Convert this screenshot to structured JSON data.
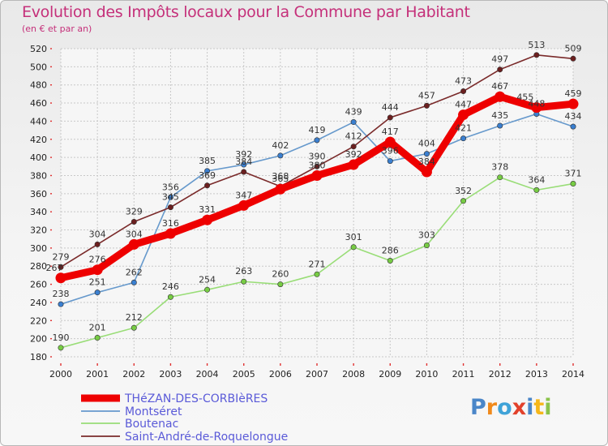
{
  "title": "Evolution des Impôts locaux pour la Commune par Habitant",
  "subtitle": "(en € et par an)",
  "logo_text": "Proxiti",
  "colors": {
    "title": "#c5307a",
    "legend_text": "#5a5ad8",
    "grid": "#c8c8c8",
    "axis_tick_red": "#e03030"
  },
  "chart_data": {
    "type": "line",
    "title": "Evolution des Impôts locaux pour la Commune par Habitant",
    "subtitle": "(en € et par an)",
    "xlabel": "",
    "ylabel": "",
    "x": [
      "2000",
      "2001",
      "2002",
      "2003",
      "2004",
      "2005",
      "2006",
      "2007",
      "2008",
      "2009",
      "2010",
      "2011",
      "2012",
      "2013",
      "2014"
    ],
    "ylim": [
      180,
      520
    ],
    "yticks": [
      180,
      200,
      220,
      240,
      260,
      280,
      300,
      320,
      340,
      360,
      380,
      400,
      420,
      440,
      460,
      480,
      500,
      520
    ],
    "grid": true,
    "legend_position": "bottom-left",
    "series": [
      {
        "name": "THéZAN-DES-CORBIèRES",
        "color": "#ee0000",
        "marker_color": "#ee0000",
        "width": "thick",
        "values": [
          267,
          276,
          304,
          316,
          331,
          347,
          365,
          380,
          392,
          417,
          384,
          447,
          467,
          455,
          459
        ],
        "labels": [
          "267",
          "276",
          "304",
          "316",
          "331",
          "347",
          "365",
          "380",
          "392",
          "417",
          "384",
          "447",
          "467",
          "455",
          "459"
        ]
      },
      {
        "name": "Montséret",
        "color": "#6699cc",
        "marker_color": "#3a7fd0",
        "width": "thin",
        "values": [
          238,
          251,
          262,
          356,
          385,
          392,
          402,
          419,
          439,
          396,
          404,
          421,
          435,
          448,
          434
        ],
        "labels": [
          "238",
          "251",
          "262",
          "356",
          "385",
          "392",
          "402",
          "419",
          "439",
          "396",
          "404",
          "421",
          "435",
          "448",
          "434"
        ]
      },
      {
        "name": "Boutenac",
        "color": "#99dd77",
        "marker_color": "#77cc44",
        "width": "thin",
        "values": [
          190,
          201,
          212,
          246,
          254,
          263,
          260,
          271,
          301,
          286,
          303,
          352,
          378,
          364,
          371
        ],
        "labels": [
          "190",
          "201",
          "212",
          "246",
          "254",
          "263",
          "260",
          "271",
          "301",
          "286",
          "303",
          "352",
          "378",
          "364",
          "371"
        ]
      },
      {
        "name": "Saint-André-de-Roquelongue",
        "color": "#7a2a2a",
        "marker_color": "#6b1f1f",
        "width": "thin",
        "values": [
          279,
          304,
          329,
          345,
          369,
          384,
          368,
          390,
          412,
          444,
          457,
          473,
          497,
          513,
          509
        ],
        "labels": [
          "279",
          "304",
          "329",
          "345",
          "369",
          "384",
          "368",
          "390",
          "412",
          "444",
          "457",
          "473",
          "497",
          "513",
          "509"
        ]
      }
    ]
  }
}
